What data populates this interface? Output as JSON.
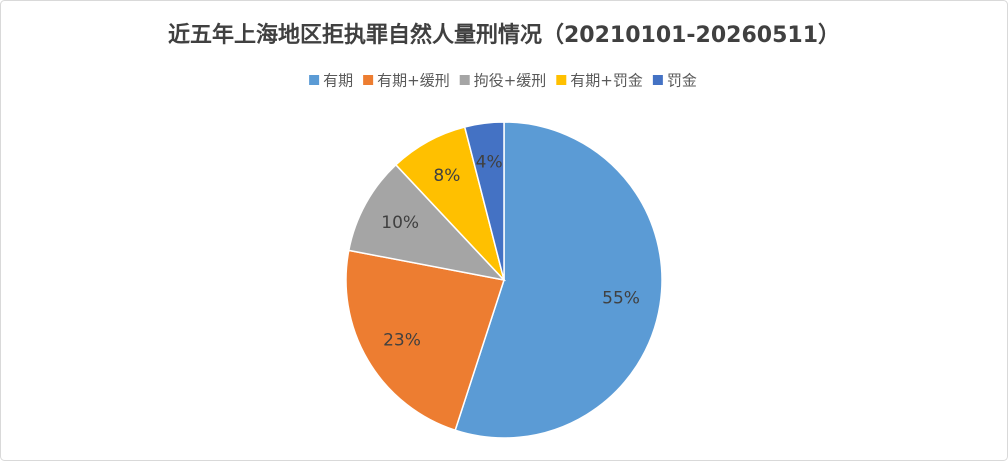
{
  "chart_data": {
    "type": "pie",
    "title": "近五年上海地区拒执罪自然人量刑情况（20210101-20260511）",
    "categories": [
      "有期",
      "有期+缓刑",
      "拘役+缓刑",
      "有期+罚金",
      "罚金"
    ],
    "values": [
      55,
      23,
      10,
      8,
      4
    ],
    "value_labels": [
      "55%",
      "23%",
      "10%",
      "8%",
      "4%"
    ],
    "colors": [
      "#5b9bd5",
      "#ed7d31",
      "#a5a5a5",
      "#ffc000",
      "#4472c4"
    ],
    "legend": "top"
  }
}
